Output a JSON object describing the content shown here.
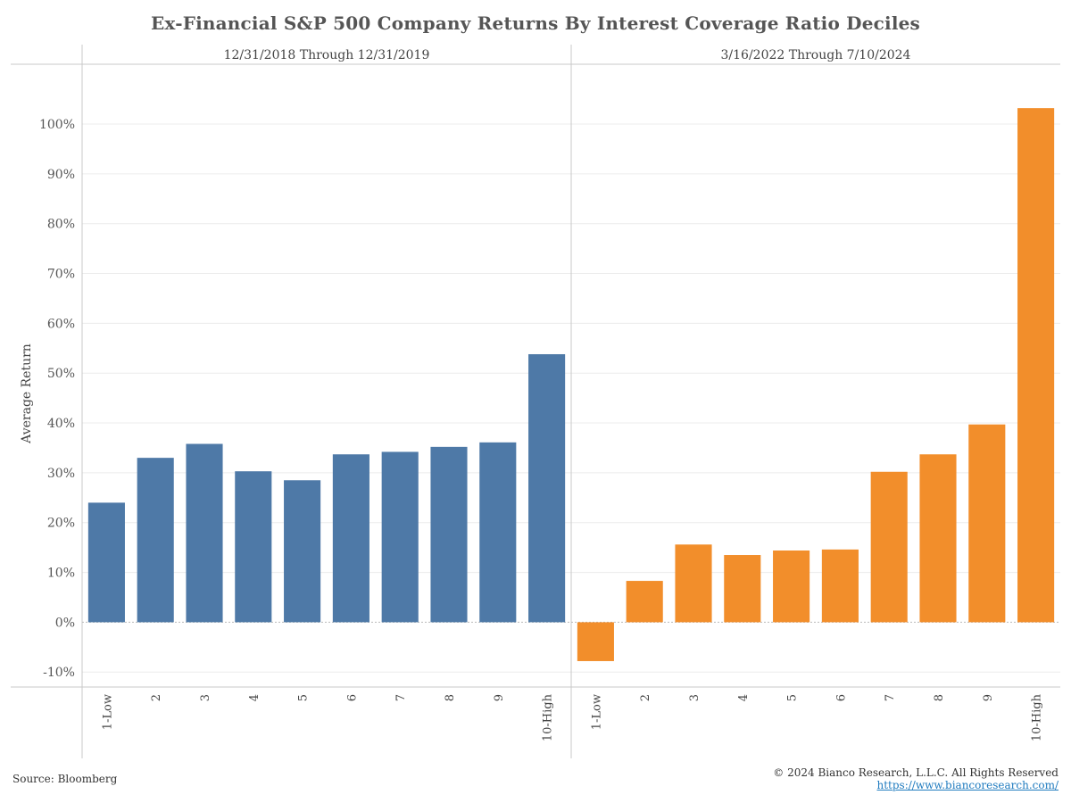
{
  "title": "Ex-Financial S&P 500 Company Returns By Interest Coverage Ratio Deciles",
  "footer": {
    "source": "Source: Bloomberg",
    "copyright": "© 2024 Bianco Research, L.L.C. All Rights Reserved",
    "url": "https://www.biancoresearch.com/"
  },
  "chart_data": {
    "type": "bar",
    "title": "Ex-Financial S&P 500 Company Returns By Interest Coverage Ratio Deciles",
    "ylabel": "Average Return",
    "xlabel": "",
    "ylim": [
      -0.13,
      1.12
    ],
    "yticks": [
      -0.1,
      0,
      0.1,
      0.2,
      0.3,
      0.4,
      0.5,
      0.6,
      0.7,
      0.8,
      0.9,
      1.0
    ],
    "ytick_labels": [
      "-10%",
      "0%",
      "10%",
      "20%",
      "30%",
      "40%",
      "50%",
      "60%",
      "70%",
      "80%",
      "90%",
      "100%"
    ],
    "grid": true,
    "categories": [
      "1-Low",
      "2",
      "3",
      "4",
      "5",
      "6",
      "7",
      "8",
      "9",
      "10-High"
    ],
    "panels": [
      {
        "name": "12/31/2018 Through 12/31/2019",
        "color": "#4e79a7",
        "values": [
          0.24,
          0.33,
          0.358,
          0.303,
          0.285,
          0.337,
          0.342,
          0.352,
          0.361,
          0.538
        ]
      },
      {
        "name": "3/16/2022 Through 7/10/2024",
        "color": "#f28e2b",
        "values": [
          -0.078,
          0.083,
          0.156,
          0.135,
          0.144,
          0.146,
          0.302,
          0.337,
          0.397,
          1.032
        ]
      }
    ]
  }
}
